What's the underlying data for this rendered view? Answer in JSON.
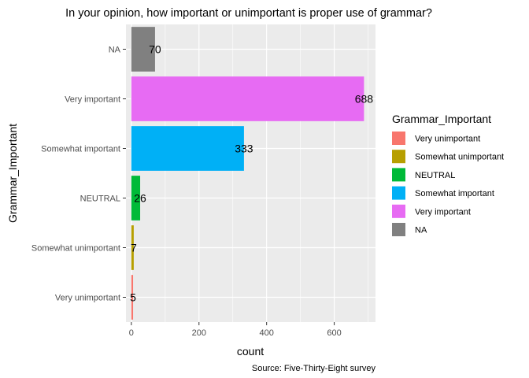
{
  "chart_data": {
    "type": "bar",
    "orientation": "horizontal",
    "title": "In your opinion, how important or unimportant is proper use of grammar?",
    "xlabel": "count",
    "ylabel": "Grammar_Important",
    "caption": "Source: Five-Thirty-Eight survey",
    "categories": [
      "Very unimportant",
      "Somewhat unimportant",
      "NEUTRAL",
      "Somewhat important",
      "Very important",
      "NA"
    ],
    "values": [
      5,
      7,
      26,
      333,
      688,
      70
    ],
    "colors": [
      "#F8766D",
      "#B79F00",
      "#00BA38",
      "#00B0F6",
      "#E76BF3",
      "#808080"
    ],
    "xlim": [
      -16,
      722
    ],
    "xticks": [
      0,
      200,
      400,
      600
    ],
    "grid": true,
    "legend": {
      "title": "Grammar_Important",
      "position": "right",
      "entries": [
        "Very unimportant",
        "Somewhat unimportant",
        "NEUTRAL",
        "Somewhat important",
        "Very important",
        "NA"
      ]
    }
  }
}
